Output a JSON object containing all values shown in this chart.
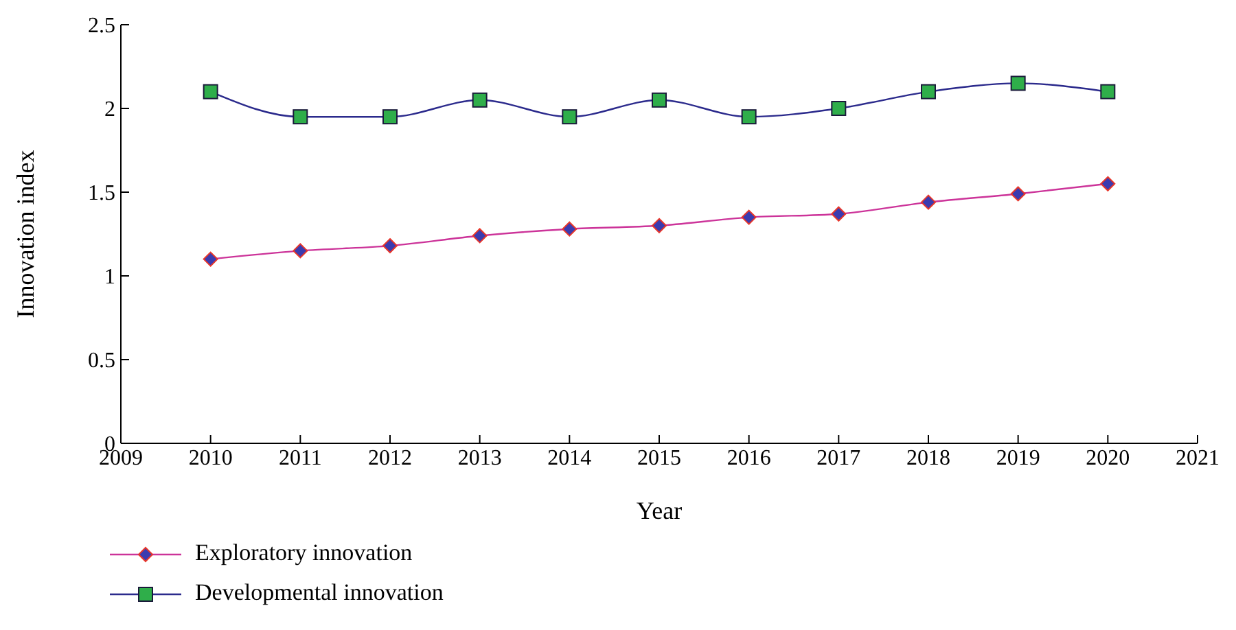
{
  "chart_data": {
    "type": "line",
    "xlabel": "Year",
    "ylabel": "Innovation index",
    "x": [
      2010,
      2011,
      2012,
      2013,
      2014,
      2015,
      2016,
      2017,
      2018,
      2019,
      2020
    ],
    "series": [
      {
        "name": "Exploratory innovation",
        "color": "#cc3399",
        "marker": "diamond",
        "values": [
          1.1,
          1.15,
          1.18,
          1.24,
          1.28,
          1.3,
          1.35,
          1.37,
          1.44,
          1.49,
          1.55
        ]
      },
      {
        "name": "Developmental innovation",
        "color": "#2b2a8c",
        "marker": "square",
        "values": [
          2.1,
          1.95,
          1.95,
          2.05,
          1.95,
          2.05,
          1.95,
          2.0,
          2.1,
          2.15,
          2.1
        ]
      }
    ],
    "xlim": [
      2009,
      2021
    ],
    "xticks": [
      2009,
      2010,
      2011,
      2012,
      2013,
      2014,
      2015,
      2016,
      2017,
      2018,
      2019,
      2020,
      2021
    ],
    "ylim": [
      0,
      2.5
    ],
    "yticks": [
      0,
      0.5,
      1,
      1.5,
      2,
      2.5
    ],
    "grid": false,
    "legend": "bottom left"
  }
}
